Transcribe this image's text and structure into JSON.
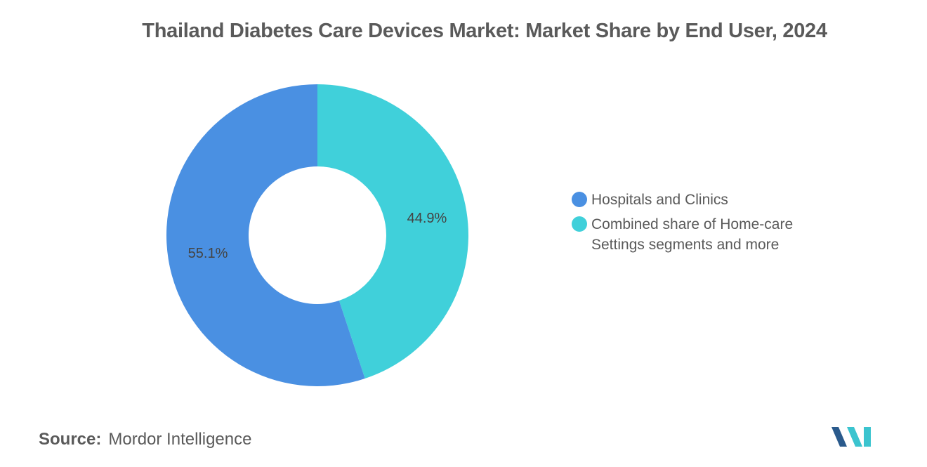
{
  "chart_data": {
    "type": "pie",
    "title": "Thailand Diabetes Care Devices Market: Market Share by End User, 2024",
    "series": [
      {
        "name": "Hospitals and Clinics",
        "value": 55.1,
        "label": "55.1%",
        "color": "#4a90e2"
      },
      {
        "name": "Combined share of Home-care Settings segments and more",
        "value": 44.9,
        "label": "44.9%",
        "color": "#40d0da"
      }
    ],
    "donut": true,
    "legend_position": "right"
  },
  "source": {
    "key": "Source:",
    "value": "Mordor Intelligence"
  },
  "logo": {
    "colors": [
      "#2a5a8c",
      "#3bc4cf"
    ]
  }
}
